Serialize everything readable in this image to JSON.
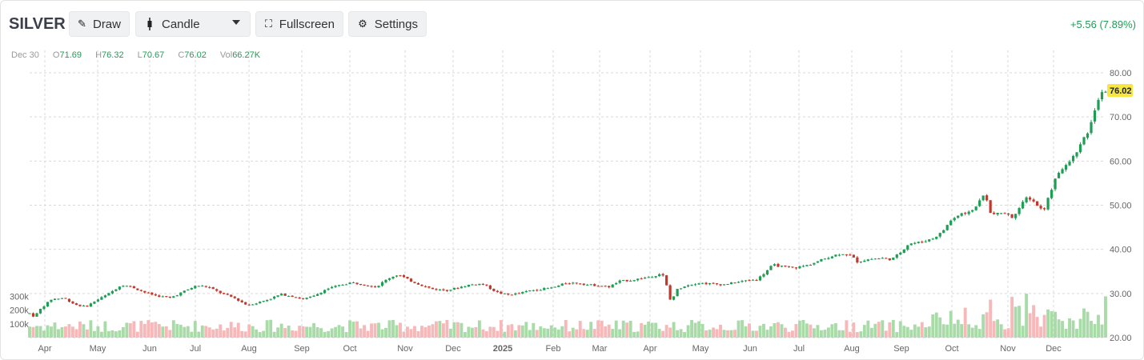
{
  "toolbar": {
    "symbol": "SILVER",
    "draw_label": "Draw",
    "chart_type_label": "Candle",
    "fullscreen_label": "Fullscreen",
    "settings_label": "Settings",
    "icons": {
      "draw": "pencil-icon",
      "chart_type": "candle-icon",
      "fullscreen": "fullscreen-icon",
      "settings": "gear-icon"
    }
  },
  "change": "+5.56 (7.89%)",
  "ohlc": {
    "date": "Dec 30",
    "o_label": "O",
    "o": "71.69",
    "h_label": "H",
    "h": "76.32",
    "l_label": "L",
    "l": "70.67",
    "c_label": "C",
    "c": "76.02",
    "vol_label": "Vol",
    "vol": "66.27K"
  },
  "colors": {
    "up": "#1f9d55",
    "down": "#c0392b",
    "vol_up": "#a8dba8",
    "vol_down": "#f6b8b8",
    "last_badge": "#f5e642",
    "grid": "#d9d9d9"
  },
  "chart_data": {
    "type": "candlestick",
    "title": "",
    "x_range": [
      "Apr",
      "Dec"
    ],
    "ylim": [
      20,
      84
    ],
    "y_ticks": [
      "80.00",
      "70.00",
      "60.00",
      "50.00",
      "40.00",
      "30.00",
      "20.00"
    ],
    "x_ticks": [
      "Apr",
      "May",
      "Jun",
      "Jul",
      "Aug",
      "Sep",
      "Oct",
      "Nov",
      "Dec",
      "2025",
      "Feb",
      "Mar",
      "Apr",
      "May",
      "Jun",
      "Jul",
      "Aug",
      "Sep",
      "Oct",
      "Nov",
      "Dec"
    ],
    "volume_ticks": [
      "300k",
      "200k",
      "100k"
    ],
    "volume_max": 320000,
    "last_price": "76.02",
    "price_path": [
      [
        0,
        25.5
      ],
      [
        6,
        24.7
      ],
      [
        14,
        26.5
      ],
      [
        28,
        28.7
      ],
      [
        44,
        29.0
      ],
      [
        58,
        27.5
      ],
      [
        72,
        27.0
      ],
      [
        86,
        28.5
      ],
      [
        100,
        29.8
      ],
      [
        118,
        32.0
      ],
      [
        132,
        31.4
      ],
      [
        148,
        30.2
      ],
      [
        162,
        29.5
      ],
      [
        180,
        29.0
      ],
      [
        198,
        30.5
      ],
      [
        214,
        31.8
      ],
      [
        228,
        31.5
      ],
      [
        246,
        30.0
      ],
      [
        262,
        29.0
      ],
      [
        278,
        27.4
      ],
      [
        290,
        27.8
      ],
      [
        306,
        28.7
      ],
      [
        322,
        29.8
      ],
      [
        336,
        29.4
      ],
      [
        350,
        28.7
      ],
      [
        364,
        29.4
      ],
      [
        380,
        31.0
      ],
      [
        396,
        31.8
      ],
      [
        412,
        32.5
      ],
      [
        428,
        32.0
      ],
      [
        444,
        31.5
      ],
      [
        460,
        33.5
      ],
      [
        472,
        34.3
      ],
      [
        486,
        33.0
      ],
      [
        500,
        32.0
      ],
      [
        516,
        31.0
      ],
      [
        534,
        30.7
      ],
      [
        548,
        31.3
      ],
      [
        564,
        32.0
      ],
      [
        580,
        32.2
      ],
      [
        598,
        30.3
      ],
      [
        612,
        29.7
      ],
      [
        626,
        30.0
      ],
      [
        642,
        30.7
      ],
      [
        656,
        31.0
      ],
      [
        670,
        31.3
      ],
      [
        686,
        32.3
      ],
      [
        700,
        32.4
      ],
      [
        714,
        32.0
      ],
      [
        728,
        31.8
      ],
      [
        742,
        31.5
      ],
      [
        756,
        32.8
      ],
      [
        770,
        33.0
      ],
      [
        786,
        33.5
      ],
      [
        800,
        34.0
      ],
      [
        808,
        34.5
      ],
      [
        814,
        33.5
      ],
      [
        818,
        29.5
      ],
      [
        822,
        28.0
      ],
      [
        828,
        30.8
      ],
      [
        840,
        31.8
      ],
      [
        856,
        32.4
      ],
      [
        872,
        32.2
      ],
      [
        888,
        32.0
      ],
      [
        904,
        32.5
      ],
      [
        920,
        33.0
      ],
      [
        932,
        33.2
      ],
      [
        942,
        34.8
      ],
      [
        952,
        36.5
      ],
      [
        966,
        36.0
      ],
      [
        980,
        35.8
      ],
      [
        996,
        36.4
      ],
      [
        1010,
        37.3
      ],
      [
        1024,
        38.3
      ],
      [
        1040,
        39.1
      ],
      [
        1052,
        38.6
      ],
      [
        1060,
        37.2
      ],
      [
        1076,
        37.8
      ],
      [
        1092,
        38.0
      ],
      [
        1104,
        37.7
      ],
      [
        1114,
        39.1
      ],
      [
        1126,
        41.3
      ],
      [
        1140,
        41.6
      ],
      [
        1156,
        42.4
      ],
      [
        1168,
        43.8
      ],
      [
        1180,
        46.6
      ],
      [
        1194,
        48.2
      ],
      [
        1206,
        48.5
      ],
      [
        1216,
        50.8
      ],
      [
        1224,
        52.8
      ],
      [
        1230,
        48.2
      ],
      [
        1238,
        47.9
      ],
      [
        1248,
        48.4
      ],
      [
        1258,
        47.2
      ],
      [
        1268,
        49.5
      ],
      [
        1278,
        52.0
      ],
      [
        1288,
        50.5
      ],
      [
        1298,
        48.6
      ],
      [
        1306,
        52.3
      ],
      [
        1316,
        57.3
      ],
      [
        1326,
        58.6
      ],
      [
        1336,
        60.8
      ],
      [
        1348,
        64.3
      ],
      [
        1358,
        67.4
      ],
      [
        1366,
        73.1
      ],
      [
        1372,
        75.0
      ],
      [
        1378,
        76.0
      ]
    ]
  }
}
